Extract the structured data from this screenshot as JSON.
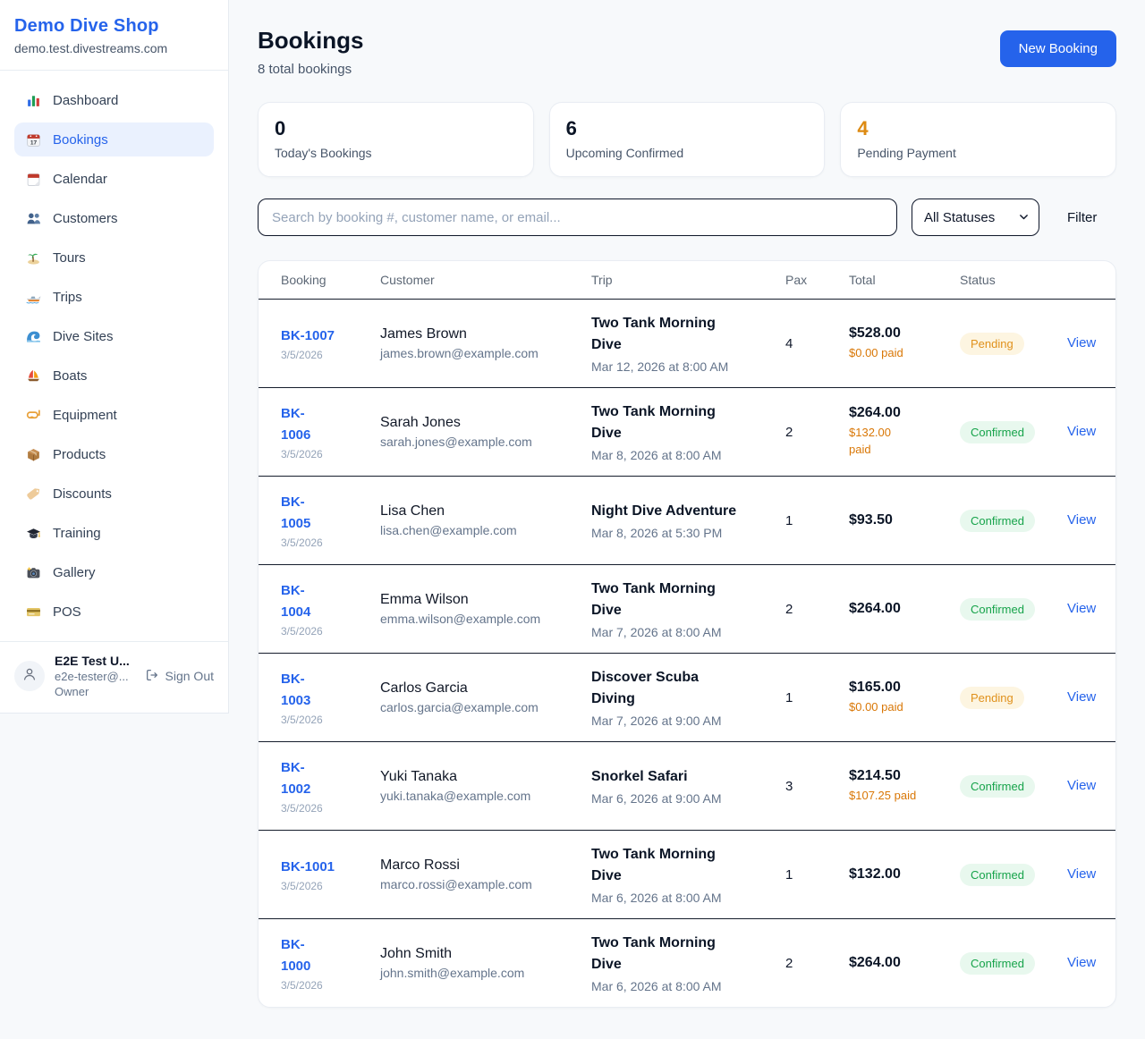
{
  "app": {
    "name": "Demo Dive Shop",
    "domain": "demo.test.divestreams.com"
  },
  "sidebar": {
    "items": [
      {
        "label": "Dashboard",
        "icon": "bar-chart-icon",
        "active": false
      },
      {
        "label": "Bookings",
        "icon": "bookings-calendar-icon",
        "active": true
      },
      {
        "label": "Calendar",
        "icon": "calendar-icon",
        "active": false
      },
      {
        "label": "Customers",
        "icon": "people-icon",
        "active": false
      },
      {
        "label": "Tours",
        "icon": "island-icon",
        "active": false
      },
      {
        "label": "Trips",
        "icon": "speedboat-icon",
        "active": false
      },
      {
        "label": "Dive Sites",
        "icon": "wave-icon",
        "active": false
      },
      {
        "label": "Boats",
        "icon": "sailboat-icon",
        "active": false
      },
      {
        "label": "Equipment",
        "icon": "diving-mask-icon",
        "active": false
      },
      {
        "label": "Products",
        "icon": "package-icon",
        "active": false
      },
      {
        "label": "Discounts",
        "icon": "tag-icon",
        "active": false
      },
      {
        "label": "Training",
        "icon": "graduation-cap-icon",
        "active": false
      },
      {
        "label": "Gallery",
        "icon": "camera-icon",
        "active": false
      },
      {
        "label": "POS",
        "icon": "credit-card-icon",
        "active": false
      }
    ],
    "user": {
      "name": "E2E Test U...",
      "email": "e2e-tester@...",
      "role": "Owner",
      "sign_out_label": "Sign Out"
    }
  },
  "header": {
    "title": "Bookings",
    "subtitle": "8 total bookings",
    "new_booking_label": "New Booking"
  },
  "stats": [
    {
      "value": "0",
      "label": "Today's Bookings",
      "color": "#0b1526"
    },
    {
      "value": "6",
      "label": "Upcoming Confirmed",
      "color": "#0b1526"
    },
    {
      "value": "4",
      "label": "Pending Payment",
      "color": "#dd8a12"
    }
  ],
  "filters": {
    "search_placeholder": "Search by booking #, customer name, or email...",
    "status_selected": "All Statuses",
    "filter_label": "Filter"
  },
  "table": {
    "headers": [
      "Booking",
      "Customer",
      "Trip",
      "Pax",
      "Total",
      "Status"
    ],
    "view_label": "View",
    "rows": [
      {
        "id_lines": [
          "BK-1007"
        ],
        "date": "3/5/2026",
        "customer": "James Brown",
        "email": "james.brown@example.com",
        "trip_lines": [
          "Two Tank Morning",
          "Dive"
        ],
        "trip_datetime": "Mar 12, 2026 at 8:00 AM",
        "pax": "4",
        "total": "$528.00",
        "paid_lines": [
          "$0.00 paid"
        ],
        "status": "Pending",
        "status_type": "pending"
      },
      {
        "id_lines": [
          "BK-",
          "1006"
        ],
        "date": "3/5/2026",
        "customer": "Sarah Jones",
        "email": "sarah.jones@example.com",
        "trip_lines": [
          "Two Tank Morning",
          "Dive"
        ],
        "trip_datetime": "Mar 8, 2026 at 8:00 AM",
        "pax": "2",
        "total": "$264.00",
        "paid_lines": [
          "$132.00",
          "paid"
        ],
        "status": "Confirmed",
        "status_type": "confirmed"
      },
      {
        "id_lines": [
          "BK-",
          "1005"
        ],
        "date": "3/5/2026",
        "customer": "Lisa Chen",
        "email": "lisa.chen@example.com",
        "trip_lines": [
          "Night Dive Adventure"
        ],
        "trip_datetime": "Mar 8, 2026 at 5:30 PM",
        "pax": "1",
        "total": "$93.50",
        "paid_lines": null,
        "status": "Confirmed",
        "status_type": "confirmed"
      },
      {
        "id_lines": [
          "BK-",
          "1004"
        ],
        "date": "3/5/2026",
        "customer": "Emma Wilson",
        "email": "emma.wilson@example.com",
        "trip_lines": [
          "Two Tank Morning",
          "Dive"
        ],
        "trip_datetime": "Mar 7, 2026 at 8:00 AM",
        "pax": "2",
        "total": "$264.00",
        "paid_lines": null,
        "status": "Confirmed",
        "status_type": "confirmed"
      },
      {
        "id_lines": [
          "BK-",
          "1003"
        ],
        "date": "3/5/2026",
        "customer": "Carlos Garcia",
        "email": "carlos.garcia@example.com",
        "trip_lines": [
          "Discover Scuba",
          "Diving"
        ],
        "trip_datetime": "Mar 7, 2026 at 9:00 AM",
        "pax": "1",
        "total": "$165.00",
        "paid_lines": [
          "$0.00 paid"
        ],
        "status": "Pending",
        "status_type": "pending"
      },
      {
        "id_lines": [
          "BK-",
          "1002"
        ],
        "date": "3/5/2026",
        "customer": "Yuki Tanaka",
        "email": "yuki.tanaka@example.com",
        "trip_lines": [
          "Snorkel Safari"
        ],
        "trip_datetime": "Mar 6, 2026 at 9:00 AM",
        "pax": "3",
        "total": "$214.50",
        "paid_lines": [
          "$107.25 paid"
        ],
        "status": "Confirmed",
        "status_type": "confirmed"
      },
      {
        "id_lines": [
          "BK-1001"
        ],
        "date": "3/5/2026",
        "customer": "Marco Rossi",
        "email": "marco.rossi@example.com",
        "trip_lines": [
          "Two Tank Morning",
          "Dive"
        ],
        "trip_datetime": "Mar 6, 2026 at 8:00 AM",
        "pax": "1",
        "total": "$132.00",
        "paid_lines": null,
        "status": "Confirmed",
        "status_type": "confirmed"
      },
      {
        "id_lines": [
          "BK-",
          "1000"
        ],
        "date": "3/5/2026",
        "customer": "John Smith",
        "email": "john.smith@example.com",
        "trip_lines": [
          "Two Tank Morning",
          "Dive"
        ],
        "trip_datetime": "Mar 6, 2026 at 8:00 AM",
        "pax": "2",
        "total": "$264.00",
        "paid_lines": null,
        "status": "Confirmed",
        "status_type": "confirmed"
      }
    ]
  },
  "colors": {
    "accent": "#2563eb",
    "pending_text": "#e0911c",
    "pending_bg": "#fdf5e1",
    "confirmed_text": "#16a34a",
    "confirmed_bg": "#e8f8ee",
    "paid_orange": "#d97706"
  }
}
